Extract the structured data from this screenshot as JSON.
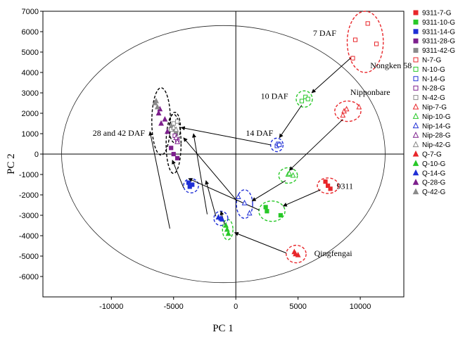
{
  "chart_data": {
    "type": "scatter",
    "xlabel": "PC 1",
    "ylabel": "PC 2",
    "xlim": [
      -15500,
      13500
    ],
    "ylim": [
      -7000,
      7000
    ],
    "x_ticks": [
      -10000,
      -5000,
      0,
      5000,
      10000
    ],
    "y_ticks": [
      -6000,
      -5000,
      -4000,
      -3000,
      -2000,
      -1000,
      0,
      1000,
      2000,
      3000,
      4000,
      5000,
      6000,
      7000
    ],
    "legend_position": "right",
    "colors": {
      "7": "#e8262a",
      "10": "#28c828",
      "14": "#1f2fd6",
      "28": "#7c1f8c",
      "42": "#8a8a8a",
      "ellipse_14": "#1f2fd6",
      "ellipse_other": "#000000"
    },
    "series": [
      {
        "name": "9311-7-G",
        "marker": "filled-square",
        "stage": "7",
        "points": [
          [
            7200,
            -1350
          ],
          [
            7400,
            -1550
          ],
          [
            7600,
            -1700
          ]
        ]
      },
      {
        "name": "9311-10-G",
        "marker": "filled-square",
        "stage": "10",
        "points": [
          [
            2400,
            -2600
          ],
          [
            2500,
            -2800
          ],
          [
            3600,
            -3000
          ]
        ]
      },
      {
        "name": "9311-14-G",
        "marker": "filled-square",
        "stage": "14",
        "points": [
          [
            -3800,
            -1400
          ],
          [
            -3700,
            -1600
          ],
          [
            -3500,
            -1500
          ]
        ]
      },
      {
        "name": "9311-28-G",
        "marker": "filled-square",
        "stage": "28",
        "points": [
          [
            -5200,
            300
          ],
          [
            -5000,
            0
          ],
          [
            -4700,
            -200
          ]
        ]
      },
      {
        "name": "9311-42-G",
        "marker": "filled-square",
        "stage": "42",
        "points": [
          [
            -5100,
            1400
          ],
          [
            -4900,
            1200
          ],
          [
            -4800,
            1000
          ]
        ]
      },
      {
        "name": "N-7-G",
        "marker": "open-square",
        "stage": "7",
        "points": [
          [
            10600,
            6400
          ],
          [
            9400,
            4700
          ],
          [
            11300,
            5400
          ],
          [
            9600,
            5600
          ]
        ]
      },
      {
        "name": "N-10-G",
        "marker": "open-square",
        "stage": "10",
        "points": [
          [
            5300,
            2600
          ],
          [
            5600,
            2800
          ],
          [
            5800,
            2700
          ]
        ]
      },
      {
        "name": "N-14-G",
        "marker": "open-square",
        "stage": "14",
        "points": [
          [
            3300,
            400
          ],
          [
            3400,
            500
          ],
          [
            3500,
            450
          ]
        ]
      },
      {
        "name": "N-28-G",
        "marker": "open-square",
        "stage": "28",
        "points": [
          [
            -4900,
            900
          ],
          [
            -4700,
            700
          ]
        ]
      },
      {
        "name": "N-42-G",
        "marker": "open-square",
        "stage": "42",
        "points": [
          [
            -5200,
            1200
          ],
          [
            -5000,
            1500
          ],
          [
            -4700,
            1600
          ]
        ]
      },
      {
        "name": "Nip-7-G",
        "marker": "open-triangle",
        "stage": "7",
        "points": [
          [
            8700,
            2100
          ],
          [
            8900,
            2200
          ],
          [
            9900,
            2300
          ],
          [
            8600,
            1900
          ]
        ]
      },
      {
        "name": "Nip-10-G",
        "marker": "open-triangle",
        "stage": "10",
        "points": [
          [
            4200,
            -1000
          ],
          [
            4300,
            -950
          ],
          [
            4600,
            -1050
          ]
        ]
      },
      {
        "name": "Nip-14-G",
        "marker": "open-triangle",
        "stage": "14",
        "points": [
          [
            200,
            -2100
          ],
          [
            700,
            -2400
          ],
          [
            1100,
            -2900
          ]
        ]
      },
      {
        "name": "Nip-28-G",
        "marker": "open-triangle",
        "stage": "28",
        "points": [
          [
            -4800,
            800
          ],
          [
            -4700,
            600
          ]
        ]
      },
      {
        "name": "Nip-42-G",
        "marker": "open-triangle",
        "stage": "42",
        "points": [
          [
            -5000,
            1300
          ],
          [
            -4800,
            1200
          ]
        ]
      },
      {
        "name": "Q-7-G",
        "marker": "filled-triangle",
        "stage": "7",
        "points": [
          [
            4700,
            -4800
          ],
          [
            5000,
            -4950
          ],
          [
            4800,
            -4900
          ]
        ]
      },
      {
        "name": "Q-10-G",
        "marker": "filled-triangle",
        "stage": "10",
        "points": [
          [
            -800,
            -3500
          ],
          [
            -700,
            -3700
          ],
          [
            -600,
            -3900
          ]
        ]
      },
      {
        "name": "Q-14-G",
        "marker": "filled-triangle",
        "stage": "14",
        "points": [
          [
            -1400,
            -3100
          ],
          [
            -1200,
            -3150
          ],
          [
            -1100,
            -3200
          ]
        ]
      },
      {
        "name": "Q-28-G",
        "marker": "filled-triangle",
        "stage": "28",
        "points": [
          [
            -6200,
            2000
          ],
          [
            -6000,
            1500
          ],
          [
            -5700,
            1700
          ],
          [
            -5500,
            1100
          ],
          [
            -6100,
            2200
          ]
        ]
      },
      {
        "name": "Q-42-G",
        "marker": "filled-triangle",
        "stage": "42",
        "points": [
          [
            -6500,
            2500
          ],
          [
            -6300,
            2300
          ],
          [
            -6400,
            2600
          ]
        ]
      }
    ],
    "ellipses": [
      {
        "label": "N-7",
        "stage": "7",
        "center": [
          10400,
          5500
        ],
        "radii": [
          1450,
          1500
        ]
      },
      {
        "label": "N-10",
        "stage": "10",
        "center": [
          5500,
          2700
        ],
        "radii": [
          650,
          400
        ]
      },
      {
        "label": "N-14",
        "stage": "14",
        "center": [
          3300,
          450
        ],
        "radii": [
          500,
          330
        ]
      },
      {
        "label": "N-28-42",
        "stage": "42",
        "center": [
          -4900,
          1300
        ],
        "radii": [
          450,
          750
        ]
      },
      {
        "label": "Nip-7",
        "stage": "7",
        "center": [
          9000,
          2100
        ],
        "radii": [
          1050,
          500
        ]
      },
      {
        "label": "Nip-10",
        "stage": "10",
        "center": [
          4200,
          -1050
        ],
        "radii": [
          750,
          380
        ]
      },
      {
        "label": "Nip-14",
        "stage": "14",
        "center": [
          700,
          -2450
        ],
        "radii": [
          650,
          700
        ]
      },
      {
        "label": "9311-7",
        "stage": "7",
        "center": [
          7400,
          -1550
        ],
        "radii": [
          850,
          380
        ]
      },
      {
        "label": "9311-10",
        "stage": "10",
        "center": [
          2900,
          -2800
        ],
        "radii": [
          1050,
          500
        ]
      },
      {
        "label": "9311-14",
        "stage": "14",
        "center": [
          -3600,
          -1550
        ],
        "radii": [
          600,
          350
        ]
      },
      {
        "label": "9311-28",
        "stage": "28",
        "center": [
          -5000,
          500
        ],
        "radii": [
          600,
          1450
        ]
      },
      {
        "label": "Q-7",
        "stage": "7",
        "center": [
          4850,
          -4900
        ],
        "radii": [
          800,
          430
        ]
      },
      {
        "label": "Q-10",
        "stage": "10",
        "center": [
          -650,
          -3700
        ],
        "radii": [
          420,
          500
        ]
      },
      {
        "label": "Q-14",
        "stage": "14",
        "center": [
          -1200,
          -3150
        ],
        "radii": [
          560,
          350
        ]
      },
      {
        "label": "Q-28-42",
        "stage": "28",
        "center": [
          -6000,
          1600
        ],
        "radii": [
          750,
          1650
        ]
      }
    ],
    "arrows": [
      {
        "from": [
          9400,
          4800
        ],
        "to": [
          6100,
          3000
        ]
      },
      {
        "from": [
          5300,
          2400
        ],
        "to": [
          3500,
          800
        ]
      },
      {
        "from": [
          2800,
          450
        ],
        "to": [
          -4400,
          1300
        ]
      },
      {
        "from": [
          8600,
          1700
        ],
        "to": [
          4300,
          -800
        ]
      },
      {
        "from": [
          4000,
          -1300
        ],
        "to": [
          1300,
          -2300
        ]
      },
      {
        "from": [
          100,
          -2300
        ],
        "to": [
          -4200,
          800
        ]
      },
      {
        "from": [
          6800,
          -1750
        ],
        "to": [
          3800,
          -2550
        ]
      },
      {
        "from": [
          1900,
          -2750
        ],
        "to": [
          -3800,
          -1200
        ]
      },
      {
        "from": [
          -4200,
          -1650
        ],
        "to": [
          -5100,
          -300
        ]
      },
      {
        "from": [
          4050,
          -4850
        ],
        "to": [
          -100,
          -3850
        ]
      },
      {
        "from": [
          -900,
          -3450
        ],
        "to": [
          -1200,
          -2800
        ]
      },
      {
        "from": [
          -1600,
          -3050
        ],
        "to": [
          -2400,
          -1300
        ]
      },
      {
        "from": [
          -2300,
          -2950
        ],
        "to": [
          -3400,
          1000
        ]
      },
      {
        "from": [
          -5300,
          -3650
        ],
        "to": [
          -6900,
          1100
        ]
      }
    ],
    "annotations": [
      {
        "text": "7 DAF",
        "x": 6200,
        "y": 5800
      },
      {
        "text": "Nongken 58",
        "x": 10800,
        "y": 4200
      },
      {
        "text": "10 DAF",
        "x": 2000,
        "y": 2700
      },
      {
        "text": "Nipponbare",
        "x": 9200,
        "y": 2900
      },
      {
        "text": "14 DAF",
        "x": 800,
        "y": 900
      },
      {
        "text": "28 and 42 DAF",
        "x": -11500,
        "y": 900
      },
      {
        "text": "9311",
        "x": 8100,
        "y": -1700
      },
      {
        "text": "Qingfengai",
        "x": 6300,
        "y": -5000
      }
    ]
  }
}
